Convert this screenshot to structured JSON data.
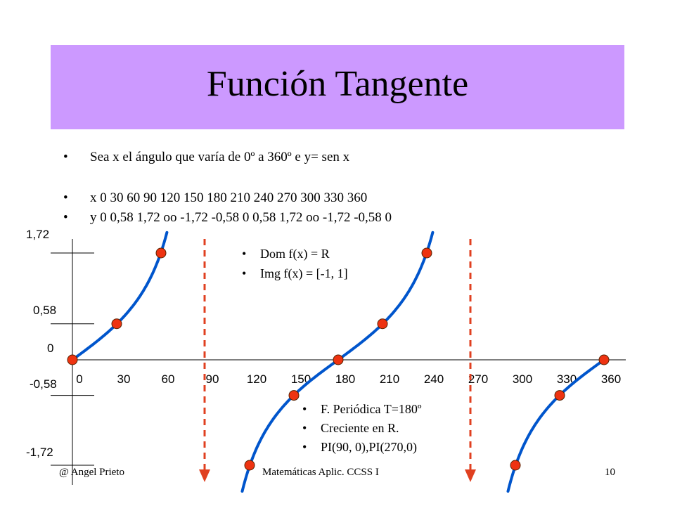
{
  "slide": {
    "title": "Función Tangente",
    "bullets": [
      "Sea x el ángulo que varía de 0º a 360º  e  y= sen x",
      "x        0     30     60     90     120  150  180   210   240   270  300   330   360",
      "y        0     0,58 1,72 oo   -1,72 -0,58  0   0,58  1,72  oo   -1,72  -0,58  0"
    ],
    "bullet_symbol": "•",
    "domain_bullets": [
      "Dom f(x) = R",
      "Img f(x) = [-1, 1]"
    ],
    "property_bullets": [
      "F. Periódica T=180º",
      "Creciente en R.",
      "PI(90, 0),PI(270,0)"
    ],
    "footer_left": "@ Angel Prieto",
    "footer_center": "Matemáticas Aplic. CCSS I",
    "footer_right": "10"
  },
  "colors": {
    "title_band": "#cc99ff",
    "curve": "#0055cc",
    "points": "#ee3311",
    "asymptotes": "#e04020",
    "axes": "#000000"
  },
  "chart_data": {
    "type": "line",
    "x_ticks": [
      0,
      30,
      60,
      90,
      120,
      150,
      180,
      210,
      240,
      270,
      300,
      330,
      360
    ],
    "y_ticks": [
      1.72,
      0.58,
      0,
      -0.58,
      -1.72
    ],
    "y_tick_labels": [
      "1,72",
      "0,58",
      "0",
      "-0,58",
      "-1,72"
    ],
    "points": [
      {
        "x": 0,
        "y": 0
      },
      {
        "x": 30,
        "y": 0.58
      },
      {
        "x": 60,
        "y": 1.72
      },
      {
        "x": 120,
        "y": -1.72
      },
      {
        "x": 150,
        "y": -0.58
      },
      {
        "x": 180,
        "y": 0
      },
      {
        "x": 210,
        "y": 0.58
      },
      {
        "x": 240,
        "y": 1.72
      },
      {
        "x": 300,
        "y": -1.72
      },
      {
        "x": 330,
        "y": -0.58
      },
      {
        "x": 360,
        "y": 0
      }
    ],
    "asymptotes": [
      90,
      270
    ],
    "xlim": [
      0,
      360
    ],
    "ylim": [
      -1.72,
      1.72
    ]
  }
}
